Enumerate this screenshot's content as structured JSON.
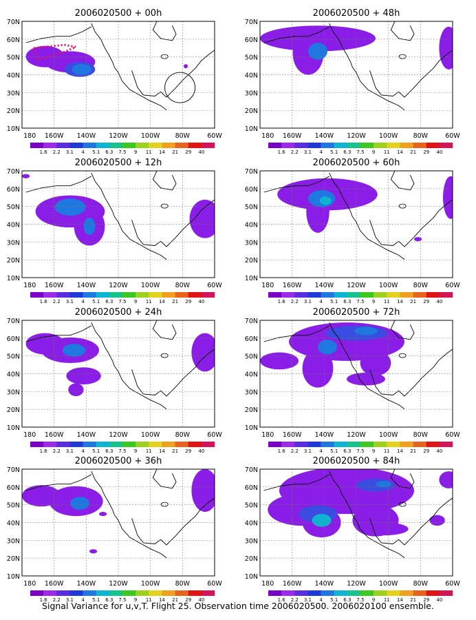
{
  "figure": {
    "caption": "Signal Variance for u,v,T. Flight 25. Observation time 2006020500. 2006020100 ensemble.",
    "lat_labels": [
      "70N",
      "60N",
      "50N",
      "40N",
      "30N",
      "20N",
      "10N"
    ],
    "lon_labels": [
      "180",
      "160W",
      "140W",
      "120W",
      "100W",
      "80W",
      "60W"
    ],
    "colorbar": {
      "labels": [
        "1.6",
        "2.2",
        "3.1",
        "4",
        "5.1",
        "6.3",
        "7.5",
        "9",
        "11",
        "14",
        "21",
        "29",
        "40"
      ],
      "colors": [
        "#7a00c8",
        "#9b2be6",
        "#5a2ee0",
        "#1f3ad8",
        "#1f77e0",
        "#0fb4d2",
        "#17c38a",
        "#3cc820",
        "#9cd21e",
        "#e2d21e",
        "#f0a01e",
        "#e8641e",
        "#e01414",
        "#d2145a"
      ]
    },
    "panels": [
      {
        "title": "2006020500 + 00h"
      },
      {
        "title": "2006020500 + 48h"
      },
      {
        "title": "2006020500 + 12h"
      },
      {
        "title": "2006020500 + 60h"
      },
      {
        "title": "2006020500 + 24h"
      },
      {
        "title": "2006020500 + 72h"
      },
      {
        "title": "2006020500 + 36h"
      },
      {
        "title": "2006020500 + 84h"
      }
    ]
  }
}
